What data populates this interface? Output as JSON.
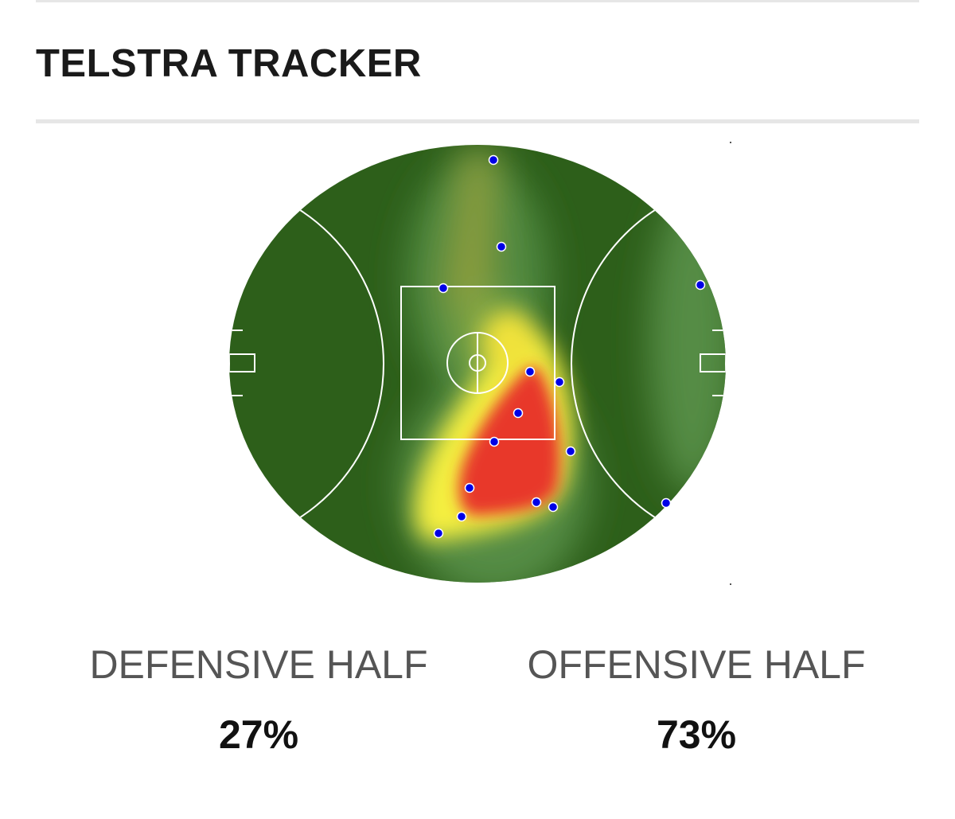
{
  "header": {
    "title": "TELSTRA TRACKER"
  },
  "heatmap": {
    "icon": "football-field-heatmap",
    "colors": {
      "field_dark": "#2d5f1a",
      "field_light": "#558c45",
      "heat_low": "#9aaa44",
      "heat_mid": "#f4ee40",
      "heat_high": "#e8392b",
      "marker": "#0000e6",
      "lines": "#ffffff"
    }
  },
  "stats": {
    "defensive": {
      "label": "DEFENSIVE HALF",
      "value": "27%"
    },
    "offensive": {
      "label": "OFFENSIVE HALF",
      "value": "73%"
    }
  }
}
